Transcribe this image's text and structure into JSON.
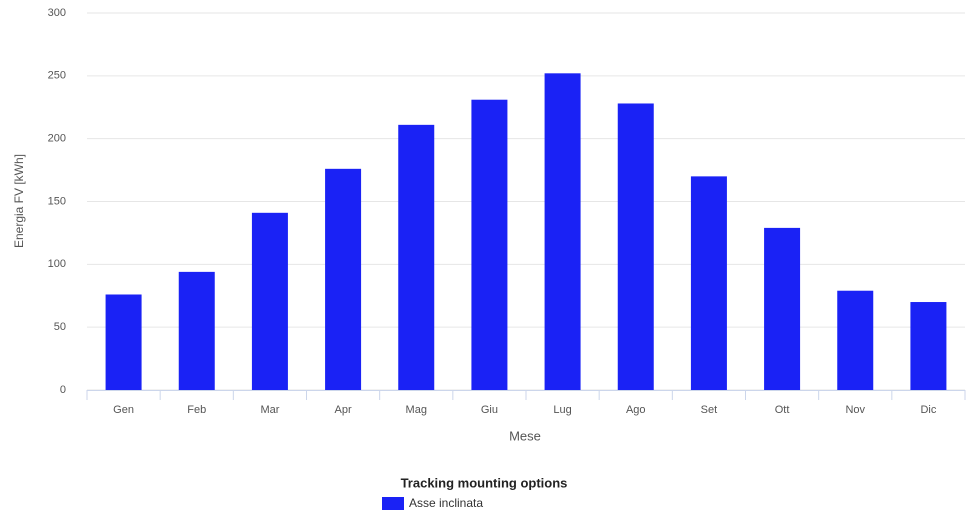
{
  "chart_data": {
    "type": "bar",
    "categories": [
      "Gen",
      "Feb",
      "Mar",
      "Apr",
      "Mag",
      "Giu",
      "Lug",
      "Ago",
      "Set",
      "Ott",
      "Nov",
      "Dic"
    ],
    "series": [
      {
        "name": "Asse inclinata",
        "color": "#1a22f5",
        "values": [
          76,
          94,
          141,
          176,
          211,
          231,
          252,
          228,
          170,
          129,
          79,
          70
        ]
      }
    ],
    "xlabel": "Mese",
    "ylabel": "Energia FV [kWh]",
    "legend_title": "Tracking mounting options",
    "ylim": [
      0,
      300
    ],
    "yticks": [
      0,
      50,
      100,
      150,
      200,
      250,
      300
    ],
    "grid": true
  }
}
